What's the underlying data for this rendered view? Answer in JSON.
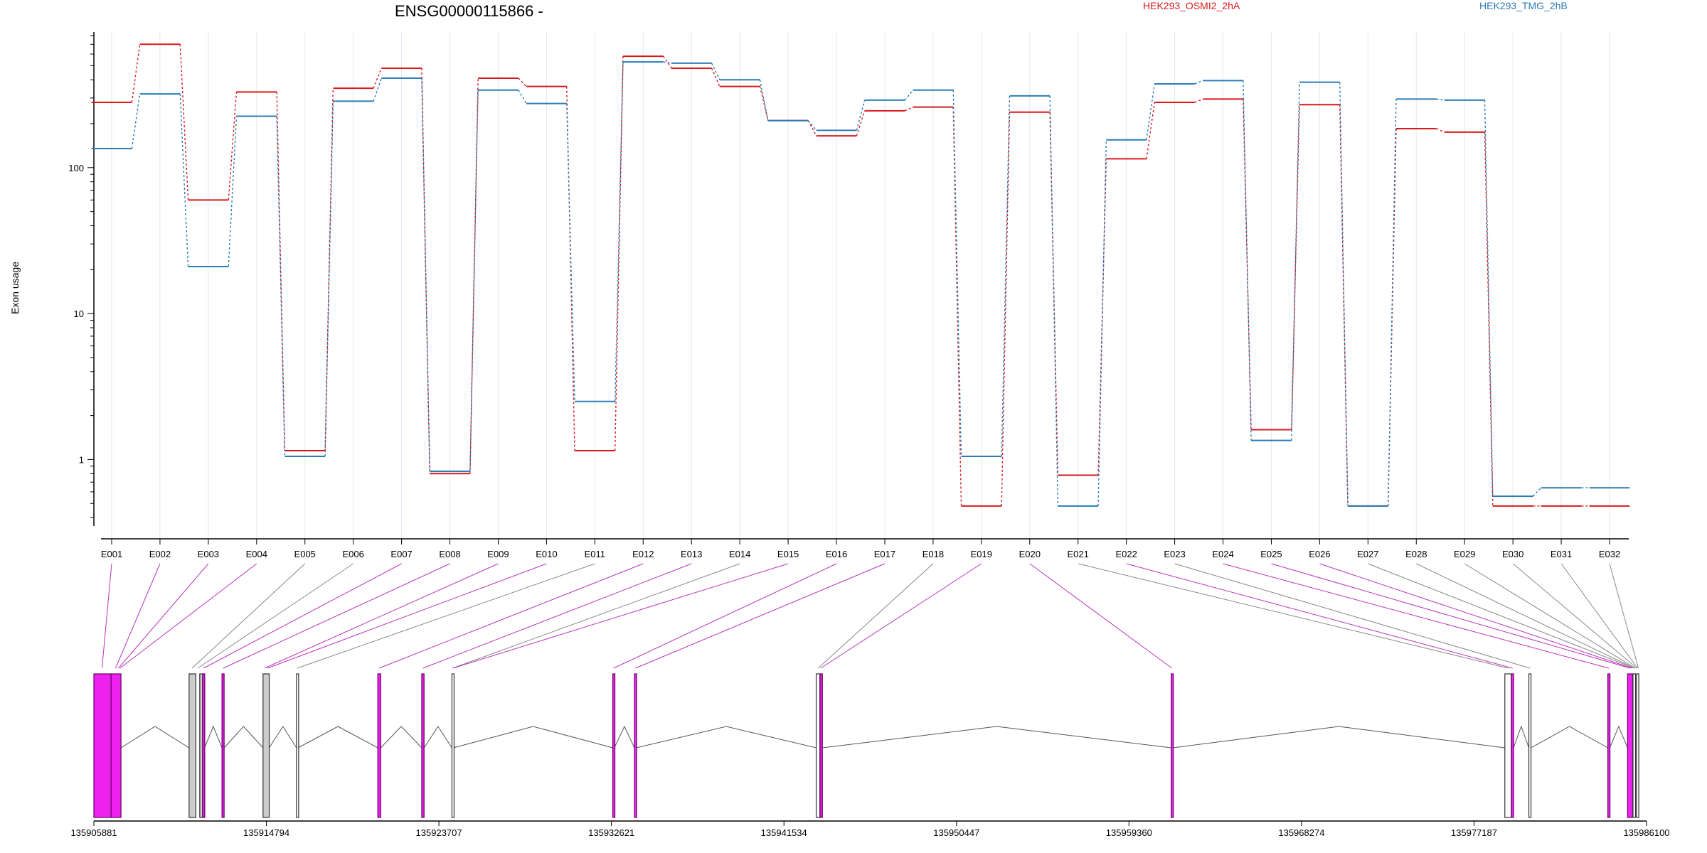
{
  "chart_data": {
    "type": "line",
    "title": "ENSG00000115866 -",
    "ylabel": "Exon usage",
    "yscale": "log",
    "ylim": [
      0.35,
      850
    ],
    "yticks": [
      "100",
      "10",
      "1"
    ],
    "ytick_values": [
      100,
      10,
      1
    ],
    "categories": [
      "E001",
      "E002",
      "E003",
      "E004",
      "E005",
      "E006",
      "E007",
      "E008",
      "E009",
      "E010",
      "E011",
      "E012",
      "E013",
      "E014",
      "E015",
      "E016",
      "E017",
      "E018",
      "E019",
      "E020",
      "E021",
      "E022",
      "E023",
      "E024",
      "E025",
      "E026",
      "E027",
      "E028",
      "E029",
      "E030",
      "E031",
      "E032"
    ],
    "series": [
      {
        "name": "HEK293_OSMI2_2hA",
        "color": "#d7191c",
        "values": [
          280,
          700,
          60,
          330,
          1.15,
          350,
          480,
          0.8,
          410,
          360,
          1.15,
          580,
          480,
          360,
          210,
          165,
          245,
          260,
          0.48,
          240,
          0.78,
          115,
          280,
          295,
          1.6,
          270,
          0.48,
          185,
          175,
          0.48,
          0.48,
          0.48
        ]
      },
      {
        "name": "HEK293_TMG_2hB",
        "color": "#2c7bb6",
        "values": [
          135,
          320,
          21,
          225,
          1.05,
          285,
          410,
          0.83,
          340,
          275,
          2.5,
          530,
          520,
          400,
          210,
          180,
          290,
          340,
          1.05,
          310,
          0.48,
          155,
          375,
          395,
          1.35,
          385,
          0.48,
          295,
          290,
          0.56,
          0.64,
          0.64
        ]
      }
    ],
    "genomic_axis": {
      "ticks": [
        "135905881",
        "135914794",
        "135923707",
        "135932621",
        "135941534",
        "135950447",
        "135959360",
        "135968274",
        "135977187",
        "135986100"
      ],
      "exons": [
        {
          "start": 135905881,
          "end": 135906770,
          "fill": "#ee22ee"
        },
        {
          "start": 135906770,
          "end": 135907280,
          "fill": "#ee22ee"
        },
        {
          "start": 135910800,
          "end": 135911150,
          "fill": "#cccccc"
        },
        {
          "start": 135911350,
          "end": 135911500,
          "fill": "#cccccc"
        },
        {
          "start": 135911500,
          "end": 135911600,
          "fill": "#ee22ee"
        },
        {
          "start": 135912500,
          "end": 135912610,
          "fill": "#ee22ee"
        },
        {
          "start": 135914620,
          "end": 135914940,
          "fill": "#cccccc"
        },
        {
          "start": 135916350,
          "end": 135916430,
          "fill": "#ffffff"
        },
        {
          "start": 135920550,
          "end": 135920700,
          "fill": "#ee22ee"
        },
        {
          "start": 135922820,
          "end": 135922940,
          "fill": "#ee22ee"
        },
        {
          "start": 135924380,
          "end": 135924460,
          "fill": "#ffffff"
        },
        {
          "start": 135932690,
          "end": 135932770,
          "fill": "#ee22ee"
        },
        {
          "start": 135933810,
          "end": 135933900,
          "fill": "#ee22ee"
        },
        {
          "start": 135943200,
          "end": 135943390,
          "fill": "#ffffff"
        },
        {
          "start": 135943400,
          "end": 135943520,
          "fill": "#ee22ee"
        },
        {
          "start": 135961540,
          "end": 135961620,
          "fill": "#ee22ee"
        },
        {
          "start": 135978780,
          "end": 135979110,
          "fill": "#ffffff"
        },
        {
          "start": 135979120,
          "end": 135979230,
          "fill": "#ee22ee"
        },
        {
          "start": 135980020,
          "end": 135980130,
          "fill": "#ffffff"
        },
        {
          "start": 135984100,
          "end": 135984200,
          "fill": "#ee22ee"
        },
        {
          "start": 135985120,
          "end": 135985390,
          "fill": "#ee22ee"
        },
        {
          "start": 135985400,
          "end": 135985530,
          "fill": "#ffffff"
        },
        {
          "start": 135985580,
          "end": 135985700,
          "fill": "#ffffff"
        }
      ],
      "links": [
        {
          "target": 135906300,
          "color": "#bb33bb"
        },
        {
          "target": 135907000,
          "color": "#bb33bb"
        },
        {
          "target": 135907150,
          "color": "#bb33bb"
        },
        {
          "target": 135907230,
          "color": "#bb33bb"
        },
        {
          "target": 135910950,
          "color": "#888888"
        },
        {
          "target": 135911250,
          "color": "#888888"
        },
        {
          "target": 135911550,
          "color": "#bb33bb"
        },
        {
          "target": 135912560,
          "color": "#bb33bb"
        },
        {
          "target": 135914700,
          "color": "#bb33bb"
        },
        {
          "target": 135914850,
          "color": "#bb33bb"
        },
        {
          "target": 135916390,
          "color": "#888888"
        },
        {
          "target": 135920620,
          "color": "#bb33bb"
        },
        {
          "target": 135922880,
          "color": "#bb33bb"
        },
        {
          "target": 135924410,
          "color": "#888888"
        },
        {
          "target": 135924430,
          "color": "#bb33bb"
        },
        {
          "target": 135932730,
          "color": "#bb33bb"
        },
        {
          "target": 135933860,
          "color": "#bb33bb"
        },
        {
          "target": 135943300,
          "color": "#888888"
        },
        {
          "target": 135943430,
          "color": "#bb33bb"
        },
        {
          "target": 135961580,
          "color": "#bb33bb"
        },
        {
          "target": 135978950,
          "color": "#888888"
        },
        {
          "target": 135979180,
          "color": "#bb33bb"
        },
        {
          "target": 135980080,
          "color": "#888888"
        },
        {
          "target": 135984150,
          "color": "#bb33bb"
        },
        {
          "target": 135985250,
          "color": "#bb33bb"
        },
        {
          "target": 135985350,
          "color": "#bb33bb"
        },
        {
          "target": 135985460,
          "color": "#888888"
        },
        {
          "target": 135985480,
          "color": "#888888"
        },
        {
          "target": 135985520,
          "color": "#888888"
        },
        {
          "target": 135985600,
          "color": "#888888"
        },
        {
          "target": 135985640,
          "color": "#888888"
        },
        {
          "target": 135985680,
          "color": "#888888"
        }
      ]
    }
  }
}
